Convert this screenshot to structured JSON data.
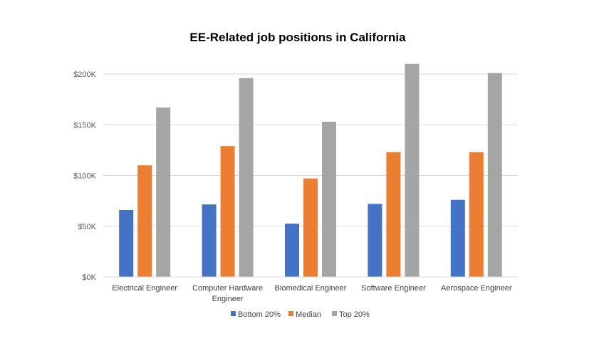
{
  "chart_data": {
    "type": "bar",
    "title": "EE-Related job positions in California",
    "xlabel": "",
    "ylabel": "",
    "categories": [
      [
        "Electrical Engineer"
      ],
      [
        "Computer Hardware",
        "Engineer"
      ],
      [
        "Biomedical Engineer"
      ],
      [
        "Software Engineer"
      ],
      [
        "Aerospace Engineer"
      ]
    ],
    "series": [
      {
        "name": "Bottom 20%",
        "color": "#4472c4",
        "values": [
          66000,
          71500,
          52500,
          72000,
          76000
        ]
      },
      {
        "name": "Median",
        "color": "#ed7d31",
        "values": [
          110000,
          129000,
          97000,
          123000,
          123000
        ]
      },
      {
        "name": "Top 20%",
        "color": "#a5a5a5",
        "values": [
          167000,
          196000,
          153000,
          210000,
          201000
        ]
      }
    ],
    "ylim": [
      0,
      200000
    ],
    "yticks": [
      0,
      50000,
      100000,
      150000,
      200000
    ],
    "ytick_labels": [
      "$0K",
      "$50K",
      "$100K",
      "$150K",
      "$200K"
    ],
    "grid": true,
    "legend": "bottom"
  }
}
